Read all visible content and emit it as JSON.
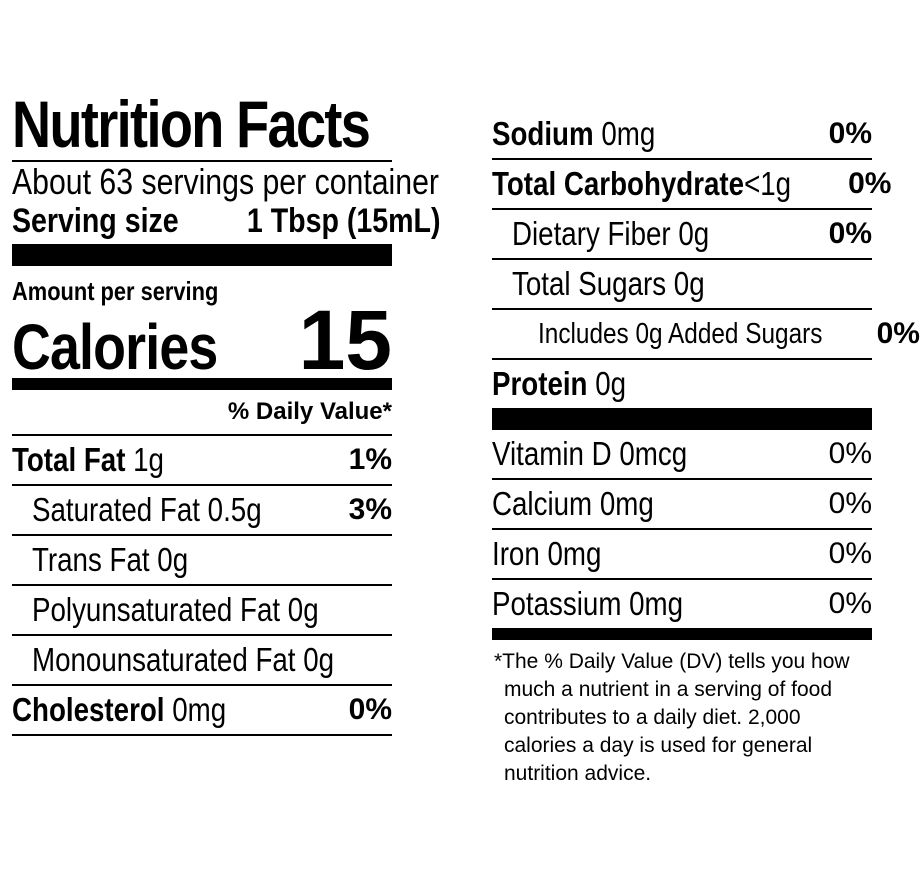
{
  "title": "Nutrition Facts",
  "servings_per_container": "About 63 servings per container",
  "serving_size_label": "Serving size",
  "serving_size_value": "1 Tbsp (15mL)",
  "amount_per_serving": "Amount per serving",
  "calories_label": "Calories",
  "calories_value": "15",
  "dv_header": "% Daily Value*",
  "left_rows": [
    {
      "name": "Total Fat",
      "amount": "1g",
      "pct": "1%"
    },
    {
      "name": "Saturated Fat",
      "amount": "0.5g",
      "pct": "3%"
    },
    {
      "name": "Trans Fat",
      "amount": "0g",
      "pct": ""
    },
    {
      "name": "Polyunsaturated Fat",
      "amount": "0g",
      "pct": ""
    },
    {
      "name": "Monounsaturated Fat",
      "amount": "0g",
      "pct": ""
    },
    {
      "name": "Cholesterol",
      "amount": "0mg",
      "pct": "0%"
    }
  ],
  "right_rows": [
    {
      "name": "Sodium",
      "amount": "0mg",
      "pct": "0%"
    },
    {
      "name": "Total Carbohydrate",
      "amount": "<1g",
      "pct": "0%"
    },
    {
      "name": "Dietary Fiber",
      "amount": "0g",
      "pct": "0%"
    },
    {
      "name": "Total Sugars",
      "amount": "0g",
      "pct": ""
    },
    {
      "name": "Includes 0g Added Sugars",
      "amount": "",
      "pct": "0%"
    },
    {
      "name": "Protein",
      "amount": "0g",
      "pct": ""
    }
  ],
  "vitamins": [
    {
      "name": "Vitamin D",
      "amount": "0mcg",
      "pct": "0%"
    },
    {
      "name": "Calcium",
      "amount": "0mg",
      "pct": "0%"
    },
    {
      "name": "Iron",
      "amount": "0mg",
      "pct": "0%"
    },
    {
      "name": "Potassium",
      "amount": "0mg",
      "pct": "0%"
    }
  ],
  "footnote": "*The % Daily Value (DV) tells you how much a nutrient in a serving of food contributes to a daily diet. 2,000 calories a day is used for general nutrition advice."
}
